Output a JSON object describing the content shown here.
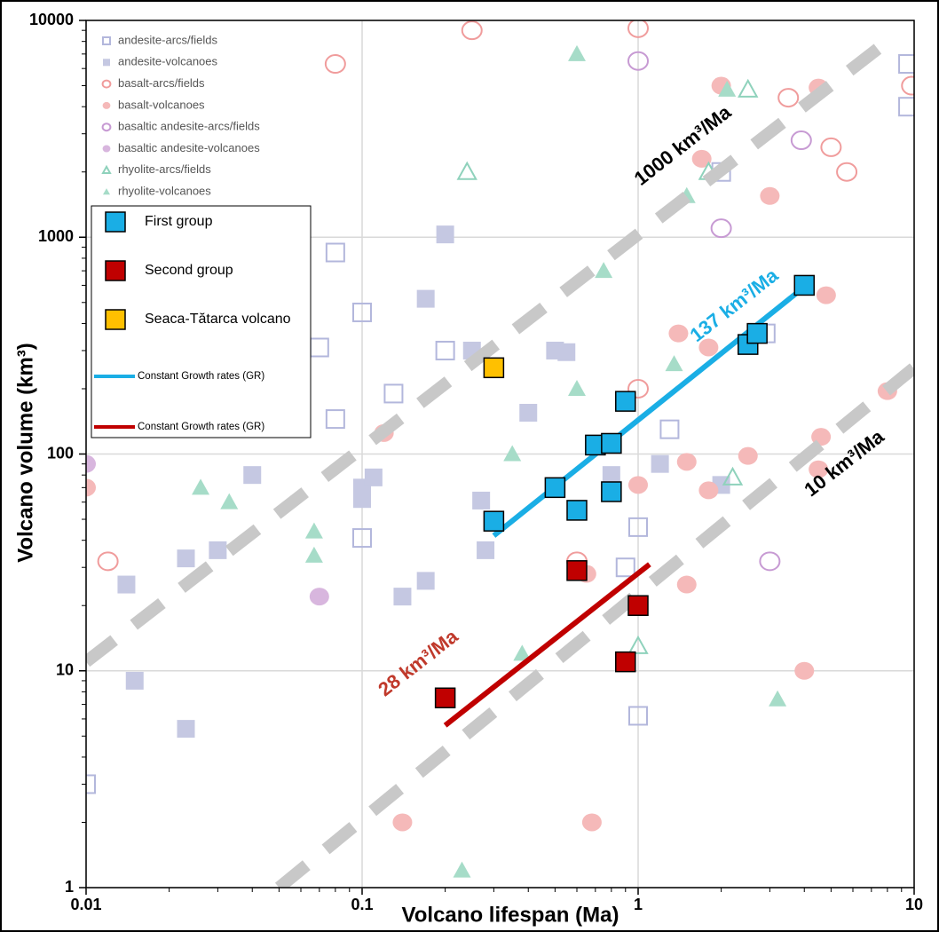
{
  "chart_data": {
    "type": "scatter",
    "xlabel": "Volcano lifespan (Ma)",
    "ylabel": "Volcano volume (km³)",
    "log_x": true,
    "log_y": true,
    "grid": true,
    "xlim": [
      0.01,
      10
    ],
    "ylim": [
      1,
      10000
    ],
    "xticks": [
      0.01,
      0.1,
      1,
      10
    ],
    "yticks": [
      1,
      10,
      100,
      1000,
      10000
    ],
    "background_series": [
      {
        "name": "andesite-arcs/fields",
        "color": "#b3b7dc",
        "marker": "square-open",
        "x": [
          0.01,
          0.08,
          0.1,
          0.07,
          0.08,
          0.1,
          0.13,
          0.2,
          1,
          1,
          0.9,
          1.3,
          2,
          2.9,
          9.5,
          9.5
        ],
        "values": [
          3,
          850,
          450,
          310,
          145,
          41,
          190,
          300,
          46,
          6.2,
          30,
          130,
          2000,
          360,
          6300,
          4000
        ]
      },
      {
        "name": "andesite-volcanoes",
        "color": "#c5c8e2",
        "marker": "square",
        "x": [
          0.015,
          0.023,
          0.014,
          0.023,
          0.03,
          0.04,
          0.1,
          0.1,
          0.11,
          0.14,
          0.17,
          0.17,
          0.2,
          0.25,
          0.27,
          0.28,
          0.4,
          0.5,
          0.55,
          0.8,
          1.2,
          2
        ],
        "values": [
          9,
          5.4,
          25,
          33,
          36,
          80,
          62,
          70,
          78,
          22,
          26,
          520,
          1030,
          300,
          61,
          36,
          155,
          300,
          295,
          80,
          90,
          72
        ]
      },
      {
        "name": "basalt-arcs/fields",
        "color": "#f09c9c",
        "marker": "circle-open",
        "x": [
          0.08,
          0.25,
          1,
          0.012,
          0.6,
          1,
          3.5,
          5,
          5.7,
          9.8
        ],
        "values": [
          6300,
          9000,
          9200,
          32,
          32,
          200,
          4400,
          2600,
          2000,
          5000
        ]
      },
      {
        "name": "basalt-volcanoes",
        "color": "#f5b9b9",
        "marker": "circle",
        "x": [
          0.01,
          0.12,
          0.14,
          0.68,
          0.65,
          1,
          1.4,
          1.5,
          1.5,
          1.7,
          1.8,
          1.8,
          2.5,
          3,
          4,
          4.5,
          4.6,
          4.8,
          4.5,
          8,
          2
        ],
        "values": [
          70,
          125,
          2,
          2,
          28,
          72,
          360,
          92,
          25,
          2300,
          68,
          310,
          98,
          1550,
          10,
          4900,
          120,
          540,
          85,
          195,
          5000
        ]
      },
      {
        "name": "basaltic andesite-arcs/fields",
        "color": "#c79ad3",
        "marker": "circle-open",
        "x": [
          1,
          2,
          3,
          3.9
        ],
        "values": [
          6500,
          1100,
          32,
          2800
        ]
      },
      {
        "name": "basaltic andesite-volcanoes",
        "color": "#d8b6de",
        "marker": "circle",
        "x": [
          0.07,
          0.01
        ],
        "values": [
          22,
          90
        ]
      },
      {
        "name": "rhyolite-arcs/fields",
        "color": "#8fd2bc",
        "marker": "triangle-open",
        "x": [
          0.24,
          1,
          2.2,
          2.5,
          1.8
        ],
        "values": [
          2000,
          13,
          78,
          4800,
          2000
        ]
      },
      {
        "name": "rhyolite-volcanoes",
        "color": "#a6dcc8",
        "marker": "triangle",
        "x": [
          0.026,
          0.033,
          0.067,
          0.067,
          0.23,
          0.35,
          0.38,
          0.6,
          0.6,
          0.75,
          1.35,
          1.5,
          2.1,
          3.2
        ],
        "values": [
          70,
          60,
          44,
          34,
          1.2,
          100,
          12,
          200,
          7000,
          700,
          260,
          1550,
          4800,
          7.4
        ]
      }
    ],
    "series": [
      {
        "name": "First group",
        "color": "#1aaee5",
        "marker": "square",
        "x": [
          0.3,
          0.5,
          0.6,
          0.7,
          0.8,
          0.8,
          0.9,
          2.5,
          2.7,
          4
        ],
        "values": [
          49,
          70,
          55,
          110,
          112,
          67,
          175,
          320,
          360,
          600
        ]
      },
      {
        "name": "Second group",
        "color": "#c00000",
        "marker": "square",
        "x": [
          0.2,
          0.6,
          0.9,
          1
        ],
        "values": [
          7.5,
          29,
          11,
          20
        ]
      },
      {
        "name": "Seaca-Tătarca volcano",
        "color": "#ffc000",
        "marker": "square",
        "x": [
          0.3
        ],
        "values": [
          250
        ]
      }
    ],
    "fit_lines": [
      {
        "name": "Constant Growth rates (GR)",
        "color": "#1aaee5",
        "x": [
          0.3,
          4
        ],
        "values": [
          42,
          590
        ]
      },
      {
        "name": "Constant Growth rates (GR)",
        "color": "#c00000",
        "x": [
          0.2,
          1.1
        ],
        "values": [
          5.6,
          31
        ]
      }
    ],
    "reference_lines": [
      {
        "color": "#c8c8c8",
        "x": [
          0.01,
          8.5
        ],
        "values": [
          11,
          8500
        ]
      },
      {
        "color": "#c8c8c8",
        "x": [
          0.05,
          10
        ],
        "values": [
          1,
          250
        ]
      }
    ],
    "annotations": [
      {
        "text": "1000 km³/Ma",
        "color": "#000000"
      },
      {
        "text": "137 km³/Ma",
        "color": "#1aaee5"
      },
      {
        "text": "10 km³/Ma",
        "color": "#000000"
      },
      {
        "text": "28 km³/Ma",
        "color": "#c0392b"
      }
    ]
  }
}
